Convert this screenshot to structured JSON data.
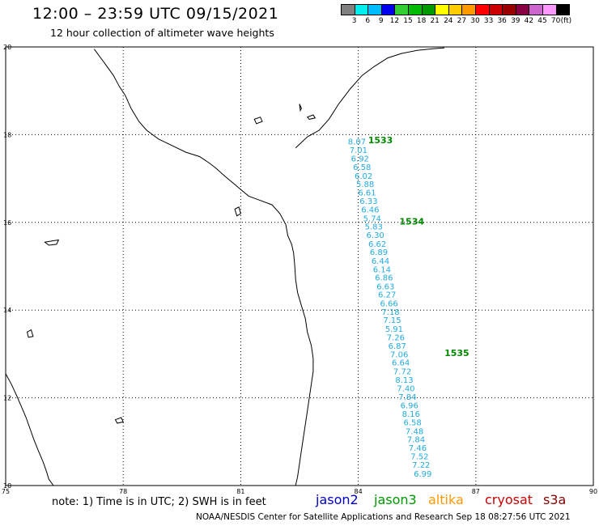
{
  "header": {
    "title": "12:00 – 23:59 UTC 09/15/2021",
    "subtitle": "12 hour collection of altimeter wave heights"
  },
  "legend": {
    "unit": "(ft)",
    "swatch_colors": [
      "#808080",
      "#00eeee",
      "#00bbff",
      "#0000ee",
      "#33cc33",
      "#00bb00",
      "#009900",
      "#ffff00",
      "#ffcc00",
      "#ff9900",
      "#ff0000",
      "#cc0000",
      "#990000",
      "#880044",
      "#cc66cc",
      "#ff99ff",
      "#000000"
    ],
    "ticks": [
      "3",
      "6",
      "9",
      "12",
      "15",
      "18",
      "21",
      "24",
      "27",
      "30",
      "33",
      "36",
      "39",
      "42",
      "45",
      "70"
    ]
  },
  "map": {
    "lon_min": 75,
    "lon_max": 90,
    "lat_min": 10,
    "lat_max": 20,
    "lon_labels": [
      "75",
      "78",
      "81",
      "84",
      "87",
      "90"
    ],
    "lat_labels": [
      "10",
      "12",
      "14",
      "16",
      "18",
      "20"
    ],
    "track_color": "#22aadd",
    "pass_color": "#008800",
    "track": [
      {
        "lat": 17.85,
        "lon": 83.8,
        "value": "8.07"
      },
      {
        "lat": 17.66,
        "lon": 83.84,
        "value": "7.01"
      },
      {
        "lat": 17.46,
        "lon": 83.88,
        "value": "6.92"
      },
      {
        "lat": 17.27,
        "lon": 83.93,
        "value": "6.58"
      },
      {
        "lat": 17.07,
        "lon": 83.97,
        "value": "6.02"
      },
      {
        "lat": 16.88,
        "lon": 84.01,
        "value": "5.88"
      },
      {
        "lat": 16.69,
        "lon": 84.06,
        "value": "6.61"
      },
      {
        "lat": 16.49,
        "lon": 84.1,
        "value": "6.33"
      },
      {
        "lat": 16.3,
        "lon": 84.14,
        "value": "6.46"
      },
      {
        "lat": 16.1,
        "lon": 84.19,
        "value": "5.74"
      },
      {
        "lat": 15.91,
        "lon": 84.23,
        "value": "5.83"
      },
      {
        "lat": 15.72,
        "lon": 84.27,
        "value": "6.30"
      },
      {
        "lat": 15.52,
        "lon": 84.32,
        "value": "6.62"
      },
      {
        "lat": 15.33,
        "lon": 84.36,
        "value": "6.89"
      },
      {
        "lat": 15.13,
        "lon": 84.4,
        "value": "6.44"
      },
      {
        "lat": 14.94,
        "lon": 84.44,
        "value": "6.14"
      },
      {
        "lat": 14.75,
        "lon": 84.49,
        "value": "6.86"
      },
      {
        "lat": 14.55,
        "lon": 84.53,
        "value": "6.63"
      },
      {
        "lat": 14.36,
        "lon": 84.57,
        "value": "6.27"
      },
      {
        "lat": 14.16,
        "lon": 84.62,
        "value": "6.66"
      },
      {
        "lat": 13.97,
        "lon": 84.66,
        "value": "7.18"
      },
      {
        "lat": 13.78,
        "lon": 84.7,
        "value": "7.15"
      },
      {
        "lat": 13.58,
        "lon": 84.75,
        "value": "5.91"
      },
      {
        "lat": 13.39,
        "lon": 84.79,
        "value": "7.26"
      },
      {
        "lat": 13.19,
        "lon": 84.83,
        "value": "6.87"
      },
      {
        "lat": 13.0,
        "lon": 84.88,
        "value": "7.06"
      },
      {
        "lat": 12.81,
        "lon": 84.92,
        "value": "6.64"
      },
      {
        "lat": 12.61,
        "lon": 84.96,
        "value": "7.72"
      },
      {
        "lat": 12.42,
        "lon": 85.01,
        "value": "8.13"
      },
      {
        "lat": 12.22,
        "lon": 85.05,
        "value": "7.40"
      },
      {
        "lat": 12.03,
        "lon": 85.09,
        "value": "7.84"
      },
      {
        "lat": 11.84,
        "lon": 85.14,
        "value": "6.96"
      },
      {
        "lat": 11.64,
        "lon": 85.18,
        "value": "8.16"
      },
      {
        "lat": 11.45,
        "lon": 85.22,
        "value": "6.58"
      },
      {
        "lat": 11.25,
        "lon": 85.27,
        "value": "7.48"
      },
      {
        "lat": 11.06,
        "lon": 85.31,
        "value": "7.84"
      },
      {
        "lat": 10.87,
        "lon": 85.35,
        "value": "7.46"
      },
      {
        "lat": 10.67,
        "lon": 85.4,
        "value": "7.52"
      },
      {
        "lat": 10.48,
        "lon": 85.44,
        "value": "7.22"
      },
      {
        "lat": 10.28,
        "lon": 85.48,
        "value": "6.99"
      }
    ],
    "passes": [
      {
        "label": "1533",
        "lat": 17.8,
        "lon": 84.25
      },
      {
        "label": "1534",
        "lat": 15.95,
        "lon": 85.05
      },
      {
        "label": "1535",
        "lat": 12.95,
        "lon": 86.2
      }
    ],
    "coastline_lonlat": [
      [
        77.26,
        19.95
      ],
      [
        77.55,
        19.6
      ],
      [
        77.75,
        19.35
      ],
      [
        77.9,
        19.1
      ],
      [
        78.05,
        18.9
      ],
      [
        78.2,
        18.6
      ],
      [
        78.4,
        18.3
      ],
      [
        78.6,
        18.1
      ],
      [
        78.9,
        17.9
      ],
      [
        79.25,
        17.75
      ],
      [
        79.6,
        17.6
      ],
      [
        79.95,
        17.5
      ],
      [
        80.2,
        17.35
      ],
      [
        80.35,
        17.25
      ],
      [
        80.6,
        17.05
      ],
      [
        80.8,
        16.9
      ],
      [
        81.0,
        16.75
      ],
      [
        81.2,
        16.6
      ],
      [
        81.5,
        16.5
      ],
      [
        81.8,
        16.4
      ],
      [
        82.0,
        16.2
      ],
      [
        82.15,
        15.95
      ],
      [
        82.2,
        15.7
      ],
      [
        82.3,
        15.5
      ],
      [
        82.35,
        15.3
      ],
      [
        82.38,
        15.0
      ],
      [
        82.4,
        14.7
      ],
      [
        82.45,
        14.4
      ],
      [
        82.55,
        14.1
      ],
      [
        82.65,
        13.8
      ],
      [
        82.7,
        13.5
      ],
      [
        82.8,
        13.2
      ],
      [
        82.85,
        12.9
      ],
      [
        82.85,
        12.6
      ],
      [
        82.8,
        12.3
      ],
      [
        82.75,
        12.0
      ],
      [
        82.7,
        11.7
      ],
      [
        82.65,
        11.4
      ],
      [
        82.6,
        11.1
      ],
      [
        82.55,
        10.8
      ],
      [
        82.5,
        10.5
      ],
      [
        82.45,
        10.2
      ],
      [
        82.4,
        10.0
      ]
    ],
    "west_coast_lonlat": [
      [
        75.0,
        12.55
      ],
      [
        75.15,
        12.3
      ],
      [
        75.28,
        12.05
      ],
      [
        75.4,
        11.8
      ],
      [
        75.52,
        11.55
      ],
      [
        75.62,
        11.3
      ],
      [
        75.72,
        11.05
      ],
      [
        75.83,
        10.8
      ],
      [
        75.95,
        10.55
      ],
      [
        76.05,
        10.3
      ],
      [
        76.1,
        10.15
      ],
      [
        76.22,
        10.0
      ]
    ],
    "islands_lonlat": [
      [
        [
          76.0,
          15.55
        ],
        [
          76.2,
          15.58
        ],
        [
          76.35,
          15.6
        ],
        [
          76.3,
          15.5
        ],
        [
          76.1,
          15.48
        ],
        [
          76.0,
          15.55
        ]
      ],
      [
        [
          82.5,
          18.7
        ],
        [
          82.55,
          18.6
        ],
        [
          82.52,
          18.55
        ],
        [
          82.5,
          18.7
        ]
      ],
      [
        [
          81.35,
          18.35
        ],
        [
          81.5,
          18.4
        ],
        [
          81.55,
          18.3
        ],
        [
          81.4,
          18.25
        ],
        [
          81.35,
          18.35
        ]
      ],
      [
        [
          82.7,
          18.4
        ],
        [
          82.85,
          18.45
        ],
        [
          82.9,
          18.38
        ],
        [
          82.75,
          18.35
        ],
        [
          82.7,
          18.4
        ]
      ],
      [
        [
          80.85,
          16.3
        ],
        [
          80.95,
          16.35
        ],
        [
          81.0,
          16.2
        ],
        [
          80.9,
          16.15
        ],
        [
          80.85,
          16.3
        ]
      ],
      [
        [
          75.55,
          13.5
        ],
        [
          75.65,
          13.55
        ],
        [
          75.7,
          13.4
        ],
        [
          75.58,
          13.38
        ],
        [
          75.55,
          13.5
        ]
      ],
      [
        [
          77.8,
          11.5
        ],
        [
          77.95,
          11.55
        ],
        [
          78.0,
          11.45
        ],
        [
          77.85,
          11.42
        ],
        [
          77.8,
          11.5
        ]
      ]
    ],
    "eastern_coast_lonlat": [
      [
        82.4,
        17.7
      ],
      [
        82.7,
        17.95
      ],
      [
        83.0,
        18.1
      ],
      [
        83.25,
        18.35
      ],
      [
        83.5,
        18.7
      ],
      [
        83.8,
        19.05
      ],
      [
        84.1,
        19.35
      ],
      [
        84.4,
        19.55
      ],
      [
        84.75,
        19.75
      ],
      [
        85.1,
        19.85
      ],
      [
        85.5,
        19.92
      ],
      [
        85.9,
        19.96
      ],
      [
        86.2,
        19.98
      ]
    ]
  },
  "notes": {
    "note": "note:  1) Time is in UTC;  2) SWH is in feet",
    "satellites": [
      {
        "name": "jason2",
        "color": "#0000cc"
      },
      {
        "name": "jason3",
        "color": "#009900"
      },
      {
        "name": "altika",
        "color": "#ff9900"
      },
      {
        "name": "cryosat",
        "color": "#cc0000"
      },
      {
        "name": "s3a",
        "color": "#880000"
      }
    ],
    "footer": "NOAA/NESDIS Center for Satellite Applications and Research     Sep 18 08:27:56 UTC 2021"
  }
}
